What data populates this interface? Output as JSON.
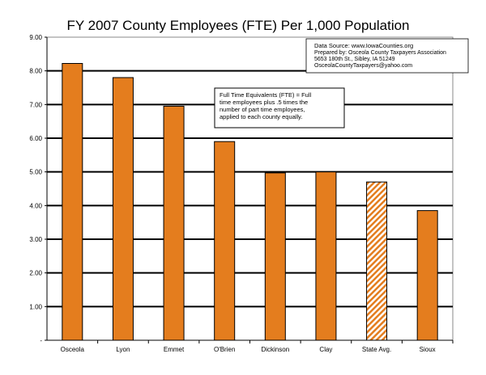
{
  "chart_data": {
    "type": "bar",
    "title": "FY 2007 County Employees (FTE) Per 1,000 Population",
    "xlabel": "",
    "ylabel": "",
    "ylim": [
      0,
      9
    ],
    "yticks": [
      "-",
      "1.00",
      "2.00",
      "3.00",
      "4.00",
      "5.00",
      "6.00",
      "7.00",
      "8.00",
      "9.00"
    ],
    "grid": true,
    "categories": [
      "Osceola",
      "Lyon",
      "Emmet",
      "O'Brien",
      "Dickinson",
      "Clay",
      "State Avg.",
      "Sioux"
    ],
    "values": [
      8.22,
      7.8,
      6.95,
      5.9,
      4.97,
      5.0,
      4.7,
      3.85
    ],
    "bar_color": "#E47D1E",
    "highlight": {
      "category": "State Avg.",
      "pattern": "diagonal-hatch"
    },
    "annotations": {
      "source": [
        "Data Source: www.IowaCounties.org",
        "Prepared by: Osceola County Taxpayers Association",
        "5653 180th St., Sibley, IA 51249",
        "OsceolaCountyTaxpayers@yahoo.com"
      ],
      "fte_note": [
        "Full Time Equivalents (FTE) = Full",
        "time employees plus .5 times the",
        "number of part time employees,",
        "applied to each county equally."
      ]
    }
  }
}
